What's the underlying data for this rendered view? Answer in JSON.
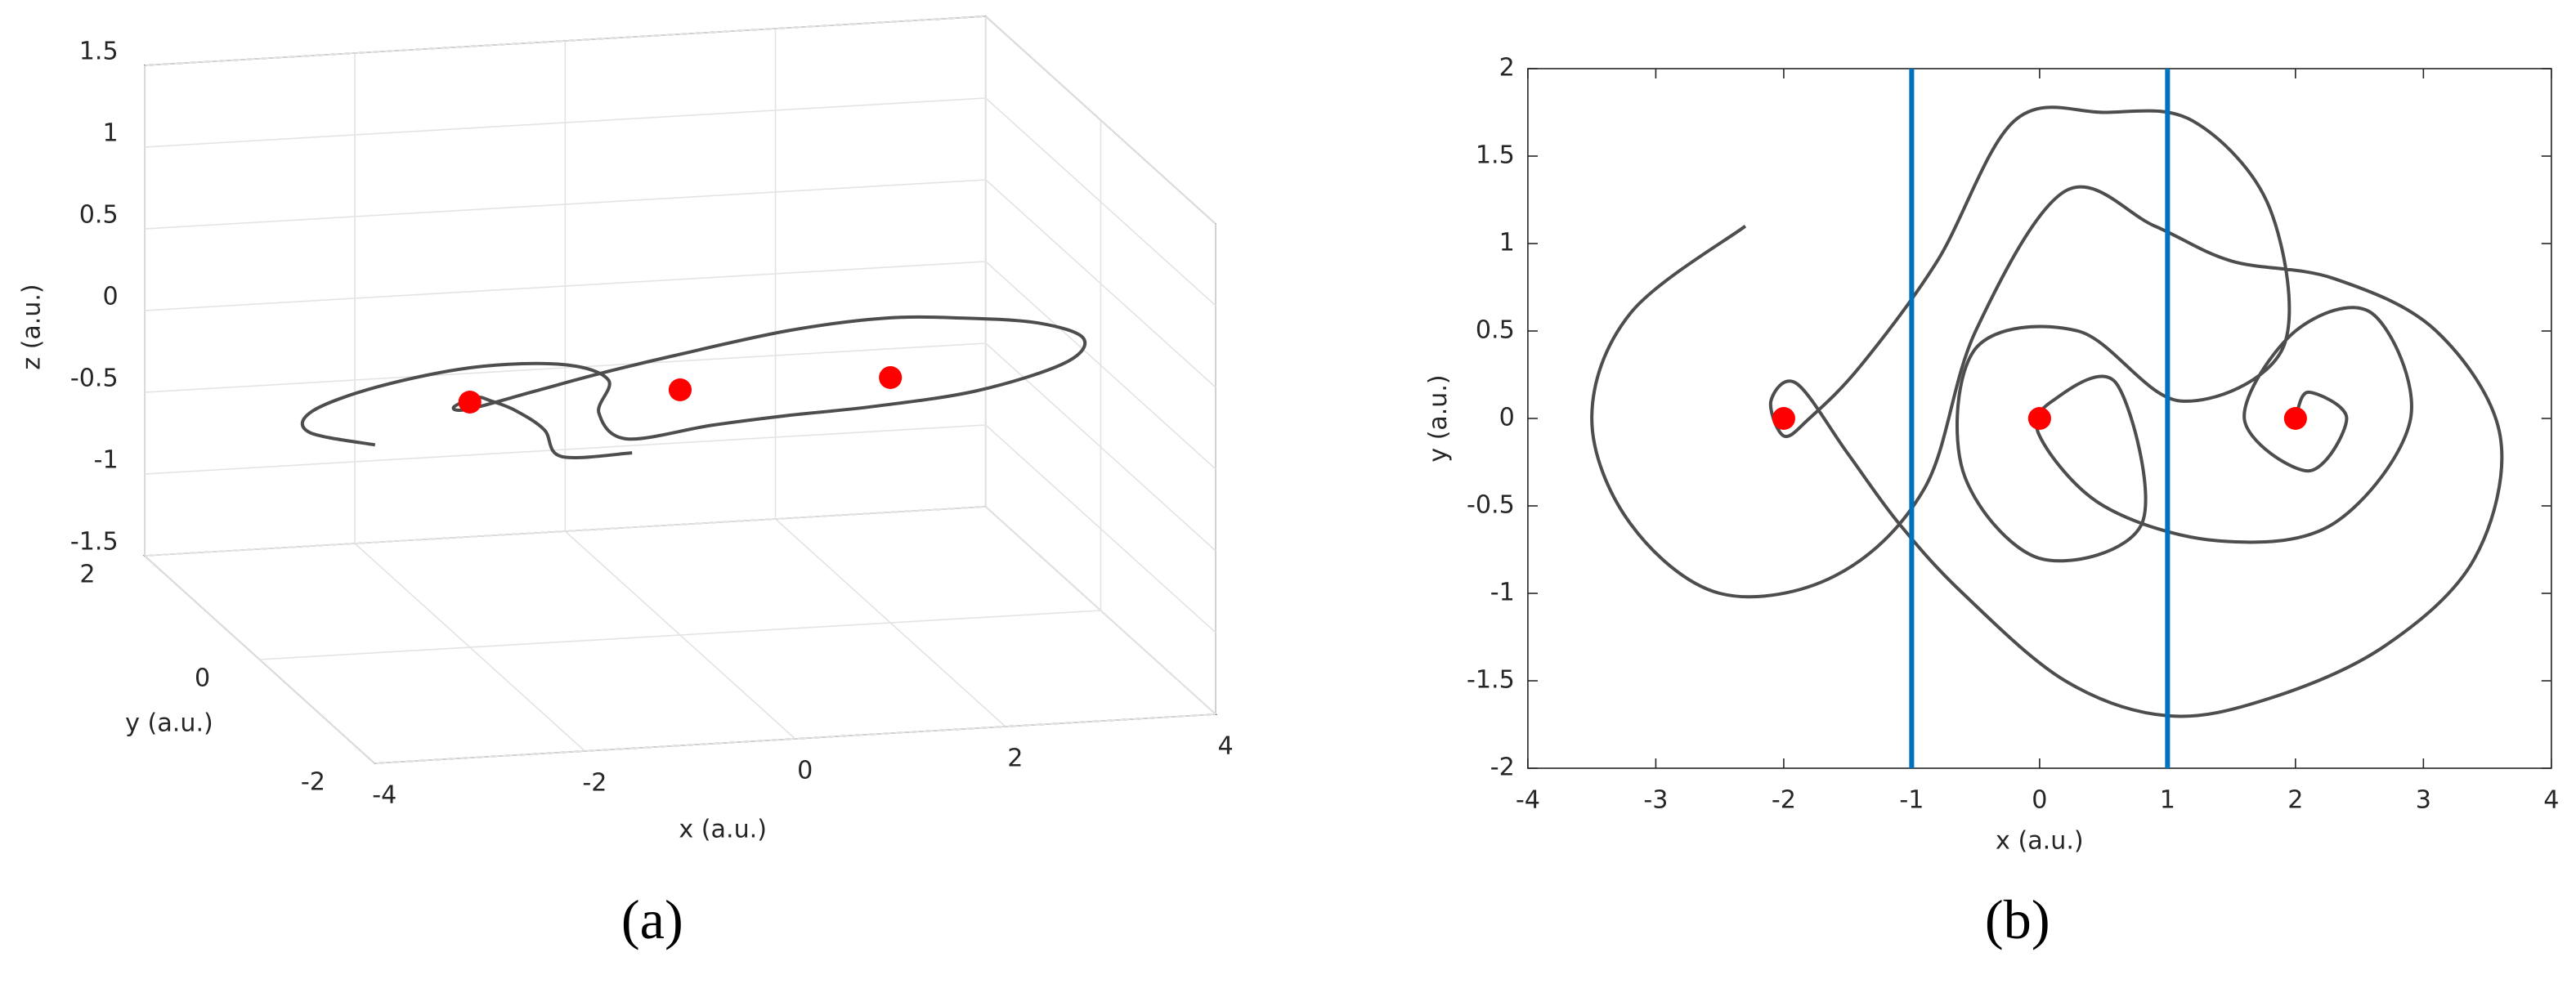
{
  "chart_data": [
    {
      "type": "line3d",
      "caption": "(a)",
      "xlabel": "x (a.u.)",
      "ylabel": "y (a.u.)",
      "zlabel": "z (a.u.)",
      "xlim": [
        -4,
        4
      ],
      "ylim": [
        -2,
        2
      ],
      "zlim": [
        -1.5,
        1.5
      ],
      "xticks": [
        -4,
        -2,
        0,
        2,
        4
      ],
      "yticks": [
        -2,
        0,
        2
      ],
      "zticks": [
        -1.5,
        -1,
        -0.5,
        0,
        0.5,
        1,
        1.5
      ],
      "grid": true,
      "trajectory": {
        "color": "#4d4d4d",
        "x": [
          -2.3,
          -3.2,
          -3.5,
          -3.2,
          -2.5,
          -1.6,
          -0.9,
          -0.5,
          0.2,
          0.9,
          1.5,
          2.3,
          3.1,
          3.6,
          3.4,
          2.7,
          1.8,
          1.0,
          0.2,
          -0.6,
          -1.1,
          -1.5,
          -1.9,
          -2.1,
          -2.0,
          -1.8,
          -1.4,
          -0.8,
          -0.2,
          0.5
        ],
        "y": [
          1.1,
          0.6,
          0.0,
          -0.6,
          -1.0,
          -0.9,
          -0.4,
          0.5,
          1.3,
          1.1,
          0.9,
          0.8,
          0.5,
          -0.1,
          -0.8,
          -1.3,
          -1.6,
          -1.7,
          -1.5,
          -1.0,
          -0.6,
          -0.2,
          0.2,
          0.1,
          -0.1,
          0.0,
          0.3,
          0.9,
          1.7,
          1.75
        ],
        "z": [
          -0.6,
          -0.33,
          0,
          0.33,
          0.55,
          0.5,
          0.22,
          -0.28,
          -0.72,
          -0.6,
          -0.5,
          -0.44,
          -0.28,
          0.06,
          0.44,
          0.72,
          0.88,
          0.94,
          0.83,
          0.55,
          0.33,
          0.11,
          -0.11,
          -0.06,
          0.06,
          0,
          -0.17,
          -0.5,
          -0.94,
          -0.96
        ]
      },
      "equilibria": {
        "color": "#ff0000",
        "x": [
          -2,
          0,
          2
        ],
        "y": [
          0,
          0,
          0
        ],
        "z": [
          0,
          0,
          0
        ]
      }
    },
    {
      "type": "line",
      "caption": "(b)",
      "xlabel": "x (a.u.)",
      "ylabel": "y (a.u.)",
      "xlim": [
        -4,
        4
      ],
      "ylim": [
        -2,
        2
      ],
      "xticks": [
        -4,
        -3,
        -2,
        -1,
        0,
        1,
        2,
        3,
        4
      ],
      "yticks": [
        -2,
        -1.5,
        -1,
        -0.5,
        0,
        0.5,
        1,
        1.5,
        2
      ],
      "grid": false,
      "trajectory": {
        "color": "#4d4d4d",
        "x": [
          -2.3,
          -3.2,
          -3.5,
          -3.2,
          -2.5,
          -1.6,
          -0.9,
          -0.5,
          0.2,
          0.9,
          1.5,
          2.3,
          3.1,
          3.6,
          3.4,
          2.7,
          1.8,
          1.0,
          0.2,
          -0.6,
          -1.1,
          -1.5,
          -1.9,
          -2.1,
          -2.0,
          -1.8,
          -1.4,
          -0.8,
          -0.2,
          0.5,
          1.2,
          1.8,
          1.9,
          1.1,
          0.3,
          -0.5,
          -0.6,
          0.0,
          0.8,
          0.6,
          0.1,
          0.0,
          0.5,
          1.4,
          2.3,
          2.9,
          2.6,
          2.0,
          1.6,
          2.1,
          2.4,
          2.1,
          2.0
        ],
        "y": [
          1.1,
          0.6,
          0.0,
          -0.6,
          -1.0,
          -0.9,
          -0.4,
          0.5,
          1.3,
          1.1,
          0.9,
          0.8,
          0.5,
          -0.1,
          -0.8,
          -1.3,
          -1.6,
          -1.7,
          -1.5,
          -1.0,
          -0.6,
          -0.2,
          0.2,
          0.1,
          -0.1,
          0.0,
          0.3,
          0.9,
          1.7,
          1.75,
          1.7,
          1.2,
          0.4,
          0.1,
          0.5,
          0.4,
          -0.3,
          -0.8,
          -0.6,
          0.2,
          0.1,
          -0.1,
          -0.5,
          -0.7,
          -0.6,
          0.0,
          0.6,
          0.5,
          0.0,
          -0.3,
          0.0,
          0.15,
          0.0
        ]
      },
      "equilibria": {
        "color": "#ff0000",
        "x": [
          -2,
          0,
          2
        ],
        "y": [
          0,
          0,
          0
        ]
      },
      "vlines": {
        "color": "#0072bd",
        "x": [
          -1,
          1
        ]
      }
    }
  ]
}
